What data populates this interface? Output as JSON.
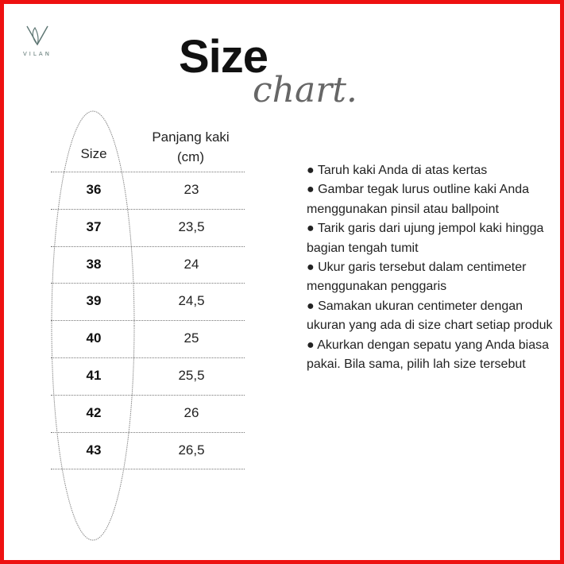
{
  "brand": {
    "name": "VILAN",
    "logo_color": "#5f7774"
  },
  "title": {
    "line1": "Size",
    "line2": "chart."
  },
  "table": {
    "headers": {
      "size": "Size",
      "length_line1": "Panjang kaki",
      "length_line2": "(cm)"
    },
    "rows": [
      {
        "size": "36",
        "length": "23"
      },
      {
        "size": "37",
        "length": "23,5"
      },
      {
        "size": "38",
        "length": "24"
      },
      {
        "size": "39",
        "length": "24,5"
      },
      {
        "size": "40",
        "length": "25"
      },
      {
        "size": "41",
        "length": "25,5"
      },
      {
        "size": "42",
        "length": "26"
      },
      {
        "size": "43",
        "length": "26,5"
      }
    ]
  },
  "instructions": [
    "● Taruh kaki Anda di atas kertas",
    "● Gambar tegak lurus outline kaki Anda menggunakan pinsil atau ballpoint",
    "● Tarik garis dari ujung jempol kaki hingga bagian tengah tumit",
    "● Ukur garis tersebut dalam centimeter menggunakan penggaris",
    "● Samakan ukuran centimeter dengan ukuran yang ada di size chart setiap produk",
    "● Akurkan dengan sepatu yang Anda biasa pakai. Bila sama, pilih lah size tersebut"
  ],
  "colors": {
    "border": "#ee1111"
  }
}
